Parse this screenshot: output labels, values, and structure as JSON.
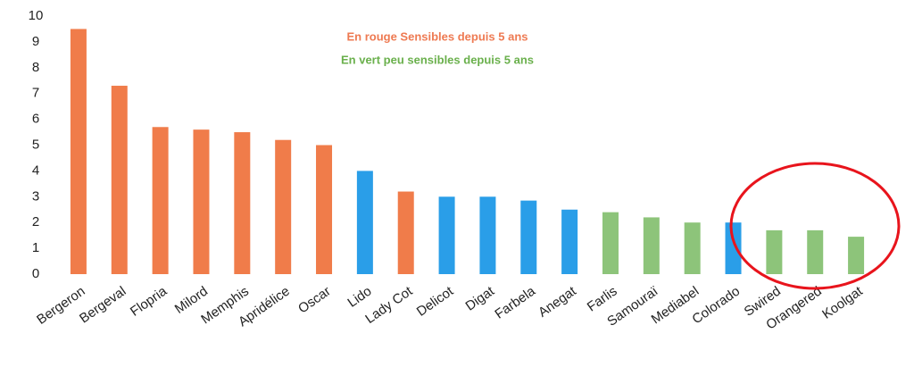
{
  "chart_data": {
    "type": "bar",
    "categories": [
      "Bergeron",
      "Bergeval",
      "Flopria",
      "Milord",
      "Memphis",
      "Apridélice",
      "Oscar",
      "Lido",
      "Lady Cot",
      "Delicot",
      "Digat",
      "Farbela",
      "Anegat",
      "Farlis",
      "Samouraï",
      "Mediabel",
      "Colorado",
      "Swired",
      "Orangered",
      "Koolgat"
    ],
    "values": [
      9.5,
      7.3,
      5.7,
      5.6,
      5.5,
      5.2,
      5.0,
      4.0,
      3.2,
      3.0,
      3.0,
      2.85,
      2.5,
      2.4,
      2.2,
      2.0,
      2.0,
      1.7,
      1.7,
      1.45
    ],
    "colors": [
      "#f07c4a",
      "#f07c4a",
      "#f07c4a",
      "#f07c4a",
      "#f07c4a",
      "#f07c4a",
      "#f07c4a",
      "#2a9ee8",
      "#f07c4a",
      "#2a9ee8",
      "#2a9ee8",
      "#2a9ee8",
      "#2a9ee8",
      "#8dc47a",
      "#8dc47a",
      "#8dc47a",
      "#2a9ee8",
      "#8dc47a",
      "#8dc47a",
      "#8dc47a"
    ],
    "annotations": [
      {
        "text": "En rouge Sensibles depuis 5 ans",
        "color": "#ee7a52"
      },
      {
        "text": "En vert peu sensibles depuis 5 ans",
        "color": "#6ab04c"
      }
    ],
    "ylim": [
      0,
      10
    ],
    "yticks": [
      0,
      1,
      2,
      3,
      4,
      5,
      6,
      7,
      8,
      9,
      10
    ],
    "grid": false
  }
}
